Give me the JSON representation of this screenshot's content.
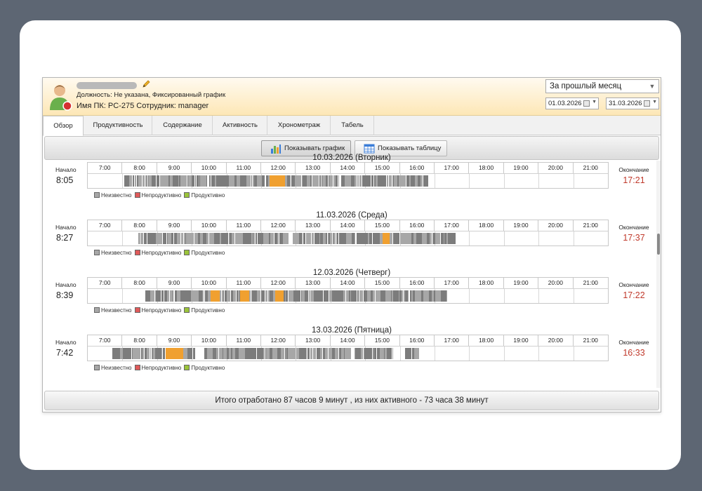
{
  "header": {
    "position_line": "Должность: Не указана, Фиксированный график",
    "pc_line": "Имя ПК: PC-275 Сотрудник: manager",
    "period": "За прошлый месяц",
    "date_from": "01.03.2026",
    "date_to": "31.03.2026"
  },
  "tabs": [
    "Обзор",
    "Продуктивность",
    "Содержание",
    "Активность",
    "Хронометраж",
    "Табель"
  ],
  "toolbar": {
    "show_chart": "Показывать график",
    "show_table": "Показывать таблицу"
  },
  "hours": [
    "7:00",
    "8:00",
    "9:00",
    "10:00",
    "11:00",
    "12:00",
    "13:00",
    "14:00",
    "15:00",
    "16:00",
    "17:00",
    "18:00",
    "19:00",
    "20:00",
    "21:00"
  ],
  "labels": {
    "start": "Начало",
    "end": "Окончание"
  },
  "legend": [
    "Неизвестно",
    "Непродуктивно",
    "Продуктивно"
  ],
  "colors": {
    "unknown": "#a7a7a7",
    "unknown_dark": "#7c7c7c",
    "unproductive": "#e05a5a",
    "productive": "#9bc43a",
    "active_highlight": "#f0a030",
    "end_time": "#c0392b"
  },
  "days": [
    {
      "title": "10.03.2026 (Вторник)",
      "start": "8:05",
      "end": "17:21",
      "activity": [
        [
          8.05,
          10.45
        ],
        [
          10.5,
          12.1
        ],
        [
          12.15,
          14.25
        ],
        [
          14.3,
          16.8
        ]
      ],
      "highlight": [
        [
          12.25,
          12.7
        ]
      ]
    },
    {
      "title": "11.03.2026 (Среда)",
      "start": "8:27",
      "end": "17:37",
      "activity": [
        [
          8.45,
          12.8
        ],
        [
          12.9,
          14.7
        ],
        [
          14.75,
          17.6
        ]
      ],
      "highlight": [
        [
          15.5,
          15.7
        ]
      ]
    },
    {
      "title": "12.03.2026 (Четверг)",
      "start": "8:39",
      "end": "17:22",
      "activity": [
        [
          8.65,
          9.45
        ],
        [
          9.5,
          16.25
        ],
        [
          16.3,
          17.37
        ]
      ],
      "highlight": [
        [
          10.55,
          10.8
        ],
        [
          11.4,
          11.65
        ],
        [
          12.4,
          12.65
        ]
      ]
    },
    {
      "title": "13.03.2026 (Пятница)",
      "start": "7:42",
      "end": "16:33",
      "activity": [
        [
          7.7,
          10.1
        ],
        [
          10.35,
          14.6
        ],
        [
          14.7,
          15.8
        ],
        [
          16.15,
          16.55
        ]
      ],
      "highlight": [
        [
          9.25,
          9.75
        ]
      ]
    }
  ],
  "footer": "Итого отработано 87 часов 9 минут , из них активного - 73 часа 38 минут"
}
